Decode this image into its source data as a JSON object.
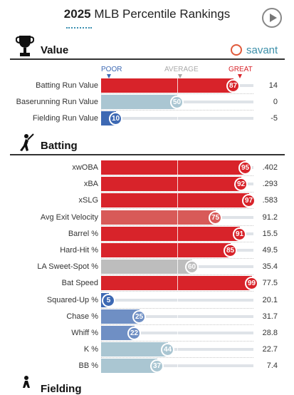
{
  "header": {
    "year": "2025",
    "title_rest": " MLB Percentile Rankings",
    "play_icon": "play-icon"
  },
  "value_section": {
    "title": "Value",
    "icon": "trophy-icon",
    "brand": "savant",
    "brand_icon": "savant-logo-icon",
    "scale": {
      "poor": "POOR",
      "average": "AVERAGE",
      "great": "GREAT"
    }
  },
  "batting_section": {
    "title": "Batting",
    "icon": "batter-icon"
  },
  "fielding_section": {
    "title": "Fielding",
    "icon": "fielder-icon"
  },
  "colors": {
    "great": "#d8232a",
    "good": "#d85a58",
    "average": "#bdbdbd",
    "light_blue": "#aac6d2",
    "poor": "#3d69b3"
  },
  "chart_data": {
    "type": "bar",
    "xlim": [
      0,
      100
    ],
    "groups": [
      {
        "name": "Value",
        "rows": [
          {
            "label": "Batting Run Value",
            "percentile": 87,
            "value": "14"
          },
          {
            "label": "Baserunning Run Value",
            "percentile": 50,
            "value": "0"
          },
          {
            "label": "Fielding Run Value",
            "percentile": 10,
            "value": "-5"
          }
        ]
      },
      {
        "name": "Batting",
        "rows": [
          {
            "label": "xwOBA",
            "percentile": 95,
            "value": ".402"
          },
          {
            "label": "xBA",
            "percentile": 92,
            "value": ".293"
          },
          {
            "label": "xSLG",
            "percentile": 97,
            "value": ".583"
          },
          {
            "label": "Avg Exit Velocity",
            "percentile": 75,
            "value": "91.2"
          },
          {
            "label": "Barrel %",
            "percentile": 91,
            "value": "15.5"
          },
          {
            "label": "Hard-Hit %",
            "percentile": 85,
            "value": "49.5"
          },
          {
            "label": "LA Sweet-Spot %",
            "percentile": 60,
            "value": "35.4"
          },
          {
            "label": "Bat Speed",
            "percentile": 99,
            "value": "77.5"
          },
          {
            "label": "Squared-Up %",
            "percentile": 5,
            "value": "20.1"
          },
          {
            "label": "Chase %",
            "percentile": 25,
            "value": "31.7"
          },
          {
            "label": "Whiff %",
            "percentile": 22,
            "value": "28.8"
          },
          {
            "label": "K %",
            "percentile": 44,
            "value": "22.7"
          },
          {
            "label": "BB %",
            "percentile": 37,
            "value": "7.4"
          }
        ]
      }
    ]
  }
}
